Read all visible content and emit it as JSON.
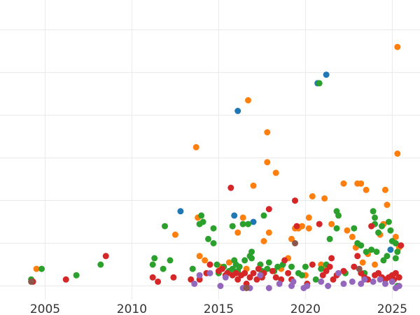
{
  "chart_data": {
    "type": "scatter",
    "title": "",
    "xlabel": "",
    "ylabel": "",
    "xlim": [
      2002.4,
      2026.6
    ],
    "ylim": [
      -3.2,
      67
    ],
    "grid": true,
    "legend": "none",
    "x_ticks": [
      {
        "value": 2005,
        "label": "2005"
      },
      {
        "value": 2010,
        "label": "2010"
      },
      {
        "value": 2015,
        "label": "2015"
      },
      {
        "value": 2020,
        "label": "2020"
      },
      {
        "value": 2025,
        "label": "2025"
      }
    ],
    "y_gridlines": [
      0,
      10,
      20,
      30,
      40,
      50,
      60
    ],
    "series": [
      {
        "color": "#1f77b4",
        "points": [
          [
            2012.8,
            17.5
          ],
          [
            2015.9,
            16.5
          ],
          [
            2016.1,
            41.0
          ],
          [
            2017.0,
            15.0
          ],
          [
            2020.7,
            47.5
          ],
          [
            2021.2,
            49.5
          ],
          [
            2024.9,
            8.5
          ]
        ]
      },
      {
        "color": "#ff7f0e",
        "points": [
          [
            2004.5,
            4.0
          ],
          [
            2012.5,
            12.0
          ],
          [
            2013.7,
            32.5
          ],
          [
            2013.8,
            16.0
          ],
          [
            2013.9,
            7.0
          ],
          [
            2014.2,
            6.0
          ],
          [
            2014.5,
            5.0
          ],
          [
            2015.1,
            4.5
          ],
          [
            2015.6,
            5.5
          ],
          [
            2016.1,
            12.5
          ],
          [
            2016.4,
            16.0
          ],
          [
            2016.6,
            4.0
          ],
          [
            2016.7,
            43.5
          ],
          [
            2017.0,
            23.5
          ],
          [
            2017.4,
            5.0
          ],
          [
            2017.6,
            10.5
          ],
          [
            2017.8,
            29.0
          ],
          [
            2017.8,
            36.0
          ],
          [
            2017.9,
            12.5
          ],
          [
            2018.3,
            26.5
          ],
          [
            2018.6,
            4.0
          ],
          [
            2019.0,
            6.5
          ],
          [
            2019.2,
            11.0
          ],
          [
            2019.4,
            13.5
          ],
          [
            2019.6,
            13.5
          ],
          [
            2019.8,
            14.0
          ],
          [
            2020.0,
            2.5
          ],
          [
            2020.2,
            13.5
          ],
          [
            2020.2,
            16.0
          ],
          [
            2020.4,
            21.0
          ],
          [
            2020.9,
            5.0
          ],
          [
            2021.1,
            20.5
          ],
          [
            2021.2,
            4.5
          ],
          [
            2021.5,
            14.5
          ],
          [
            2022.2,
            24.0
          ],
          [
            2022.4,
            13.0
          ],
          [
            2022.7,
            11.5
          ],
          [
            2022.9,
            9.0
          ],
          [
            2023.0,
            24.0
          ],
          [
            2023.2,
            24.0
          ],
          [
            2023.3,
            5.5
          ],
          [
            2023.5,
            22.5
          ],
          [
            2023.6,
            7.5
          ],
          [
            2024.0,
            5.0
          ],
          [
            2024.3,
            12.0
          ],
          [
            2024.5,
            14.5
          ],
          [
            2024.6,
            22.5
          ],
          [
            2024.7,
            19.0
          ],
          [
            2025.2,
            11.5
          ],
          [
            2025.3,
            56.0
          ],
          [
            2025.3,
            31.0
          ],
          [
            2025.4,
            9.0
          ]
        ]
      },
      {
        "color": "#2ca02c",
        "points": [
          [
            2004.2,
            1.5
          ],
          [
            2004.8,
            4.0
          ],
          [
            2006.8,
            2.5
          ],
          [
            2008.2,
            5.0
          ],
          [
            2011.2,
            5.0
          ],
          [
            2011.3,
            6.5
          ],
          [
            2011.8,
            4.0
          ],
          [
            2011.9,
            14.0
          ],
          [
            2012.2,
            6.0
          ],
          [
            2013.5,
            4.0
          ],
          [
            2013.9,
            14.5
          ],
          [
            2014.0,
            16.5
          ],
          [
            2014.1,
            15.0
          ],
          [
            2014.4,
            11.0
          ],
          [
            2014.7,
            13.5
          ],
          [
            2014.7,
            10.0
          ],
          [
            2014.9,
            5.0
          ],
          [
            2015.0,
            3.0
          ],
          [
            2015.3,
            4.5
          ],
          [
            2015.6,
            3.5
          ],
          [
            2015.8,
            4.0
          ],
          [
            2015.8,
            14.0
          ],
          [
            2015.9,
            6.0
          ],
          [
            2016.0,
            5.0
          ],
          [
            2016.1,
            3.5
          ],
          [
            2016.2,
            4.5
          ],
          [
            2016.4,
            14.5
          ],
          [
            2016.5,
            6.0
          ],
          [
            2016.7,
            14.5
          ],
          [
            2016.8,
            7.0
          ],
          [
            2016.9,
            8.0
          ],
          [
            2016.9,
            6.5
          ],
          [
            2017.3,
            4.0
          ],
          [
            2017.4,
            5.0
          ],
          [
            2017.5,
            3.5
          ],
          [
            2017.6,
            16.5
          ],
          [
            2017.8,
            4.0
          ],
          [
            2017.9,
            5.5
          ],
          [
            2018.2,
            3.5
          ],
          [
            2018.4,
            4.5
          ],
          [
            2018.7,
            5.0
          ],
          [
            2019.2,
            4.5
          ],
          [
            2019.6,
            3.0
          ],
          [
            2019.8,
            2.5
          ],
          [
            2020.0,
            4.5
          ],
          [
            2020.6,
            1.5
          ],
          [
            2020.8,
            47.5
          ],
          [
            2020.9,
            4.0
          ],
          [
            2021.2,
            5.0
          ],
          [
            2021.4,
            11.0
          ],
          [
            2021.8,
            13.5
          ],
          [
            2021.8,
            17.5
          ],
          [
            2021.9,
            16.5
          ],
          [
            2022.3,
            3.0
          ],
          [
            2022.8,
            13.5
          ],
          [
            2023.0,
            10.0
          ],
          [
            2023.2,
            9.5
          ],
          [
            2023.4,
            3.0
          ],
          [
            2023.5,
            8.0
          ],
          [
            2023.8,
            8.5
          ],
          [
            2023.9,
            17.5
          ],
          [
            2024.0,
            16.0
          ],
          [
            2024.0,
            14.5
          ],
          [
            2024.1,
            8.0
          ],
          [
            2024.2,
            12.5
          ],
          [
            2024.4,
            14.0
          ],
          [
            2024.5,
            6.0
          ],
          [
            2024.7,
            7.0
          ],
          [
            2024.8,
            15.0
          ],
          [
            2024.9,
            13.0
          ],
          [
            2025.0,
            10.5
          ],
          [
            2025.2,
            6.5
          ],
          [
            2025.2,
            10.0
          ],
          [
            2025.3,
            8.0
          ],
          [
            2025.3,
            0.0
          ]
        ]
      },
      {
        "color": "#d62728",
        "points": [
          [
            2004.3,
            1.0
          ],
          [
            2006.2,
            1.5
          ],
          [
            2008.5,
            7.0
          ],
          [
            2011.2,
            2.0
          ],
          [
            2011.5,
            1.0
          ],
          [
            2012.4,
            2.0
          ],
          [
            2013.4,
            1.5
          ],
          [
            2013.9,
            1.5
          ],
          [
            2014.3,
            3.0
          ],
          [
            2014.5,
            5.0
          ],
          [
            2015.0,
            3.5
          ],
          [
            2015.2,
            4.0
          ],
          [
            2015.4,
            2.5
          ],
          [
            2015.5,
            3.0
          ],
          [
            2015.7,
            23.0
          ],
          [
            2015.8,
            2.5
          ],
          [
            2016.0,
            3.0
          ],
          [
            2016.1,
            1.5
          ],
          [
            2016.3,
            2.5
          ],
          [
            2016.5,
            3.0
          ],
          [
            2016.6,
            0.5
          ],
          [
            2016.8,
            2.0
          ],
          [
            2017.0,
            3.0
          ],
          [
            2017.2,
            1.5
          ],
          [
            2017.3,
            4.0
          ],
          [
            2017.5,
            2.0
          ],
          [
            2017.6,
            3.0
          ],
          [
            2017.9,
            18.0
          ],
          [
            2018.1,
            3.5
          ],
          [
            2018.3,
            2.0
          ],
          [
            2018.6,
            1.5
          ],
          [
            2018.8,
            6.0
          ],
          [
            2019.0,
            3.0
          ],
          [
            2019.2,
            1.5
          ],
          [
            2019.4,
            20.0
          ],
          [
            2019.5,
            14.0
          ],
          [
            2020.1,
            0.5
          ],
          [
            2020.4,
            5.0
          ],
          [
            2020.8,
            14.5
          ],
          [
            2021.0,
            2.5
          ],
          [
            2021.2,
            3.5
          ],
          [
            2021.4,
            4.5
          ],
          [
            2021.5,
            6.5
          ],
          [
            2021.6,
            1.5
          ],
          [
            2021.8,
            2.5
          ],
          [
            2022.2,
            3.5
          ],
          [
            2022.8,
            4.5
          ],
          [
            2023.0,
            7.0
          ],
          [
            2023.2,
            3.0
          ],
          [
            2023.4,
            2.0
          ],
          [
            2023.6,
            1.5
          ],
          [
            2023.8,
            14.0
          ],
          [
            2024.0,
            2.5
          ],
          [
            2024.2,
            3.0
          ],
          [
            2024.4,
            2.0
          ],
          [
            2024.6,
            1.5
          ],
          [
            2024.8,
            2.0
          ],
          [
            2025.0,
            2.5
          ],
          [
            2025.1,
            1.5
          ],
          [
            2025.2,
            3.0
          ],
          [
            2025.4,
            2.0
          ],
          [
            2025.5,
            9.5
          ]
        ]
      },
      {
        "color": "#9467bd",
        "points": [
          [
            2013.6,
            0.5
          ],
          [
            2013.9,
            2.5
          ],
          [
            2014.5,
            3.0
          ],
          [
            2015.1,
            0.0
          ],
          [
            2015.4,
            2.0
          ],
          [
            2016.4,
            -0.5
          ],
          [
            2016.8,
            -0.5
          ],
          [
            2017.4,
            2.5
          ],
          [
            2017.9,
            -0.5
          ],
          [
            2018.5,
            0.5
          ],
          [
            2019.2,
            0.0
          ],
          [
            2019.3,
            1.0
          ],
          [
            2019.9,
            -0.5
          ],
          [
            2020.1,
            0.0
          ],
          [
            2020.9,
            1.0
          ],
          [
            2021.3,
            0.0
          ],
          [
            2021.9,
            3.0
          ],
          [
            2022.2,
            0.5
          ],
          [
            2022.7,
            1.0
          ],
          [
            2023.2,
            0.5
          ],
          [
            2023.4,
            1.5
          ],
          [
            2023.9,
            1.0
          ],
          [
            2024.3,
            1.5
          ],
          [
            2024.6,
            0.5
          ],
          [
            2025.0,
            1.0
          ],
          [
            2025.2,
            -0.5
          ],
          [
            2025.4,
            0.0
          ]
        ]
      },
      {
        "color": "#8c564b",
        "points": [
          [
            2004.2,
            1.0
          ],
          [
            2016.6,
            -0.5
          ],
          [
            2019.4,
            10.0
          ],
          [
            2023.1,
            4.0
          ]
        ]
      }
    ]
  }
}
